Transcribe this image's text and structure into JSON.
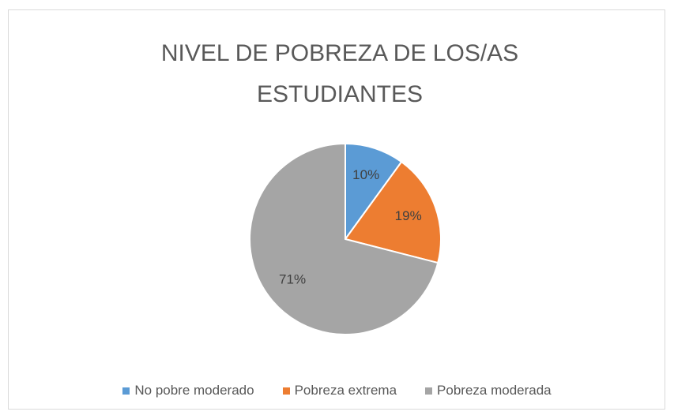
{
  "chart_data": {
    "type": "pie",
    "title": "NIVEL DE POBREZA DE LOS/AS ESTUDIANTES",
    "categories": [
      "No pobre moderado",
      "Pobreza extrema",
      "Pobreza moderada"
    ],
    "values": [
      10,
      19,
      71
    ],
    "value_labels": [
      "10%",
      "19%",
      "71%"
    ],
    "colors": [
      "#5b9bd5",
      "#ed7d31",
      "#a5a5a5"
    ],
    "legend": "bottom"
  }
}
